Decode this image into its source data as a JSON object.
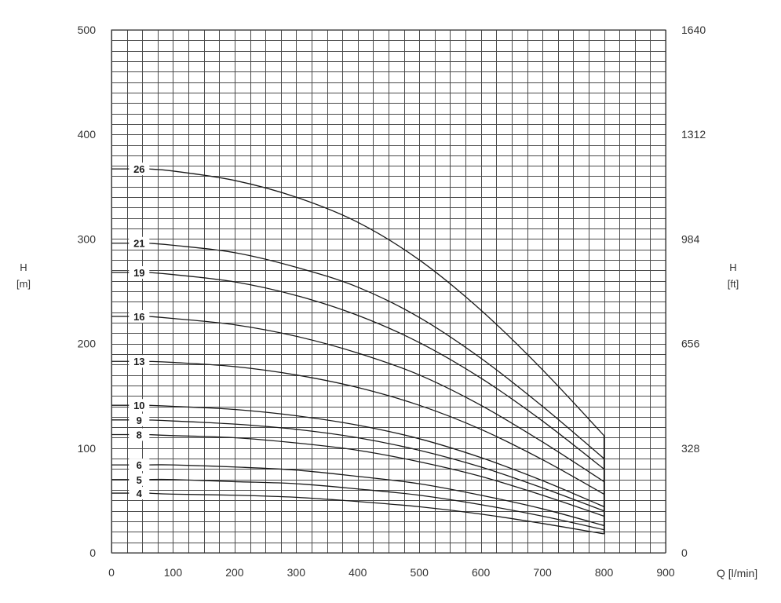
{
  "chart_data": {
    "type": "line",
    "x_axis": {
      "title": "Q [l/min]",
      "range": [
        0,
        900
      ],
      "ticks": [
        0,
        100,
        200,
        300,
        400,
        500,
        600,
        700,
        800,
        900
      ],
      "tick_labels": [
        "0",
        "100",
        "200",
        "300",
        "400",
        "500",
        "600",
        "700",
        "800",
        "900"
      ],
      "minor_step": 25
    },
    "y_axis_left": {
      "title": "H",
      "unit": "[m]",
      "range": [
        0,
        500
      ],
      "ticks": [
        0,
        100,
        200,
        300,
        400,
        500
      ],
      "tick_labels": [
        "0",
        "100",
        "200",
        "300",
        "400",
        "500"
      ],
      "minor_step": 10
    },
    "y_axis_right": {
      "title": "H",
      "unit": "[ft]",
      "range": [
        0,
        1640
      ],
      "tick_labels": [
        "0",
        "328",
        "656",
        "984",
        "1312",
        "1640"
      ]
    },
    "grid": true,
    "series": [
      {
        "name": "26",
        "x": [
          0,
          100,
          200,
          300,
          400,
          500,
          600,
          700,
          800
        ],
        "y": [
          367,
          365,
          356,
          340,
          316,
          280,
          232,
          175,
          112
        ]
      },
      {
        "name": "21",
        "x": [
          0,
          100,
          200,
          300,
          400,
          500,
          600,
          700,
          800
        ],
        "y": [
          296,
          294,
          287,
          273,
          254,
          225,
          186,
          140,
          90
        ]
      },
      {
        "name": "19",
        "x": [
          0,
          100,
          200,
          300,
          400,
          500,
          600,
          700,
          800
        ],
        "y": [
          268,
          266,
          259,
          246,
          227,
          201,
          167,
          126,
          80
        ]
      },
      {
        "name": "16",
        "x": [
          0,
          100,
          200,
          300,
          400,
          500,
          600,
          700,
          800
        ],
        "y": [
          226,
          224,
          218,
          207,
          191,
          170,
          141,
          106,
          68
        ]
      },
      {
        "name": "13",
        "x": [
          0,
          100,
          200,
          300,
          400,
          500,
          600,
          700,
          800
        ],
        "y": [
          183,
          182,
          178,
          170,
          158,
          141,
          118,
          89,
          56
        ]
      },
      {
        "name": "10",
        "x": [
          0,
          100,
          200,
          300,
          400,
          500,
          600,
          700,
          800
        ],
        "y": [
          141,
          140,
          137,
          131,
          122,
          109,
          91,
          69,
          44
        ]
      },
      {
        "name": "9",
        "x": [
          0,
          100,
          200,
          300,
          400,
          500,
          600,
          700,
          800
        ],
        "y": [
          127,
          126,
          123,
          118,
          110,
          98,
          82,
          62,
          40
        ]
      },
      {
        "name": "8",
        "x": [
          0,
          100,
          200,
          300,
          400,
          500,
          600,
          700,
          800
        ],
        "y": [
          113,
          112,
          110,
          105,
          98,
          87,
          73,
          55,
          35
        ]
      },
      {
        "name": "6",
        "x": [
          0,
          100,
          200,
          300,
          400,
          500,
          600,
          700,
          800
        ],
        "y": [
          84,
          84,
          82,
          79,
          73,
          66,
          55,
          42,
          26
        ]
      },
      {
        "name": "5",
        "x": [
          0,
          100,
          200,
          300,
          400,
          500,
          600,
          700,
          800
        ],
        "y": [
          70,
          70,
          68,
          66,
          61,
          55,
          46,
          35,
          22
        ]
      },
      {
        "name": "4",
        "x": [
          0,
          100,
          200,
          300,
          400,
          500,
          600,
          700,
          800
        ],
        "y": [
          57,
          56,
          55,
          53,
          49,
          44,
          37,
          28,
          18
        ]
      }
    ]
  }
}
